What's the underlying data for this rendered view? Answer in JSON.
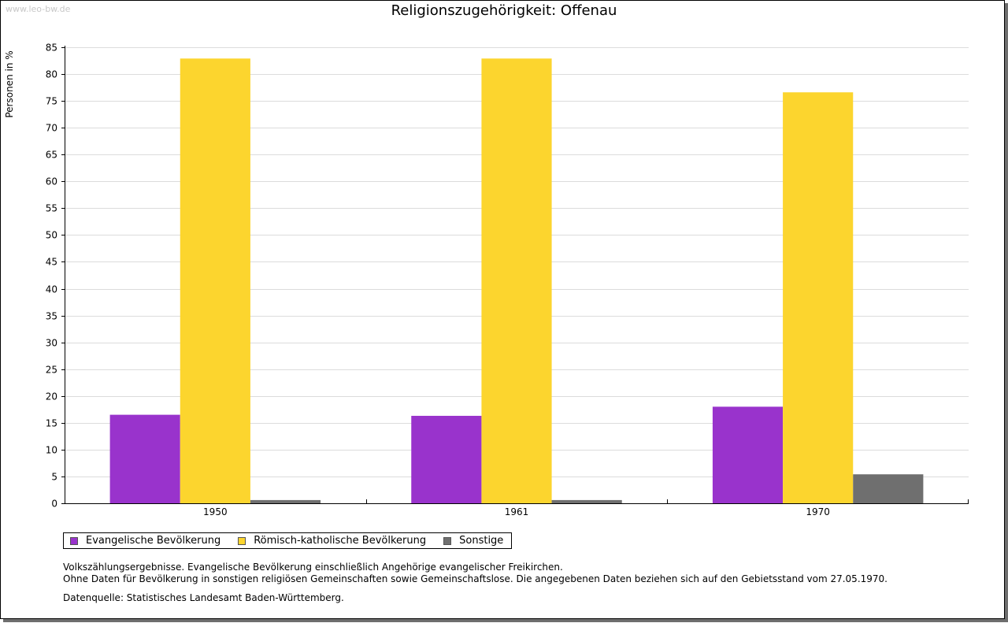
{
  "watermark": "www.leo-bw.de",
  "notes": {
    "line1": "Volkszählungsergebnisse. Evangelische Bevölkerung einschließlich Angehörige evangelischer Freikirchen.",
    "line2": "Ohne Daten für Bevölkerung in sonstigen religiösen Gemeinschaften sowie Gemeinschaftslose. Die angegebenen Daten beziehen sich auf den Gebietsstand vom 27.05.1970.",
    "source": "Datenquelle: Statistisches Landesamt Baden-Württemberg."
  },
  "chart_data": {
    "type": "bar",
    "title": "Religionszugehörigkeit: Offenau",
    "xlabel": "",
    "ylabel": "Personen in %",
    "ylim": [
      0,
      85
    ],
    "ytick_step": 5,
    "grid": true,
    "legend_position": "bottom-left",
    "categories": [
      "1950",
      "1961",
      "1970"
    ],
    "series": [
      {
        "name": "Evangelische Bevölkerung",
        "color": "#9933cc",
        "values": [
          16.5,
          16.3,
          18.0
        ]
      },
      {
        "name": "Römisch-katholische Bevölkerung",
        "color": "#fcd52e",
        "values": [
          82.9,
          82.9,
          76.6
        ]
      },
      {
        "name": "Sonstige",
        "color": "#6f6f6f",
        "values": [
          0.6,
          0.6,
          5.4
        ]
      }
    ]
  }
}
